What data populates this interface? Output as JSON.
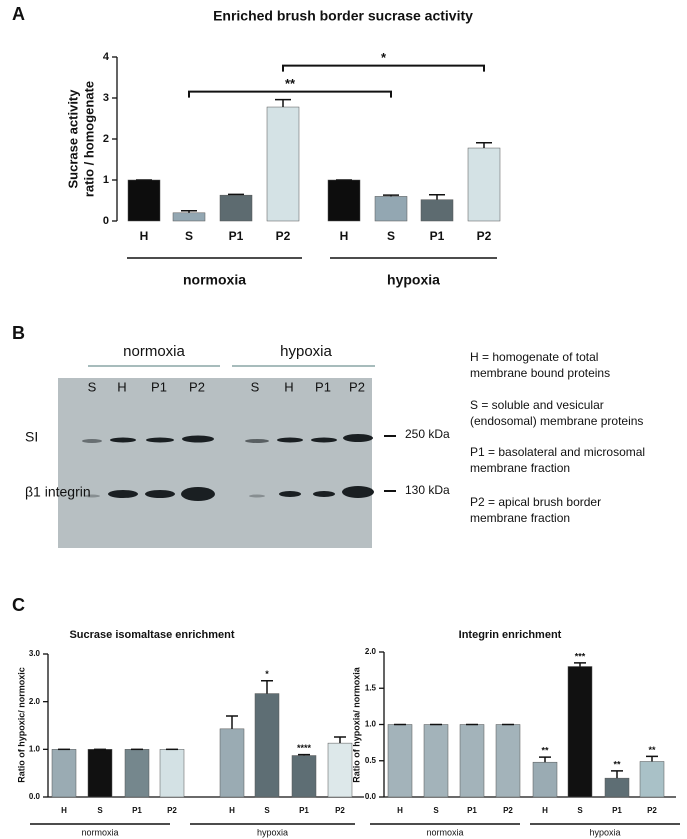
{
  "panel_labels": [
    "A",
    "B",
    "C"
  ],
  "chart_data": [
    {
      "type": "bar",
      "title": "Enriched brush border sucrase activity",
      "ylabel": [
        "Sucrase activity",
        "ratio / homogenate"
      ],
      "categories": [
        "H",
        "S",
        "P1",
        "P2",
        "H",
        "S",
        "P1",
        "P2"
      ],
      "values": [
        1.0,
        0.2,
        0.63,
        2.78,
        1.0,
        0.6,
        0.52,
        1.78
      ],
      "errors": [
        0,
        0.05,
        0.02,
        0.18,
        0,
        0.03,
        0.12,
        0.13
      ],
      "colors": [
        "#0d0d0d",
        "#93a7b2",
        "#5d6b70",
        "#d4e2e5",
        "#0d0d0d",
        "#93a7b2",
        "#5d6b70",
        "#d4e2e5"
      ],
      "groups": [
        "normoxia",
        "hypoxia"
      ],
      "brackets": [
        {
          "from": 1,
          "to": 5,
          "label": "**"
        },
        {
          "from": 3,
          "to": 7,
          "label": "*"
        }
      ],
      "ylim": [
        0,
        4
      ],
      "yticks": [
        0,
        1,
        2,
        3,
        4
      ]
    },
    {
      "type": "bar",
      "title": "Sucrase isomaltase enrichment",
      "ylabel": [
        "Ratio of hypoxic/ normoxic"
      ],
      "categories": [
        "H",
        "S",
        "P1",
        "P2",
        "H",
        "S",
        "P1",
        "P2"
      ],
      "values": [
        1,
        1,
        1,
        1,
        1.43,
        2.17,
        0.87,
        1.13
      ],
      "errors": [
        0,
        0,
        0,
        0,
        0.27,
        0.27,
        0.02,
        0.13
      ],
      "colors": [
        "#9aabb3",
        "#111111",
        "#75878d",
        "#d3e1e4",
        "#9aabb3",
        "#5e6e74",
        "#5e6e74",
        "#dde8ea"
      ],
      "significance": [
        null,
        null,
        null,
        null,
        null,
        "*",
        "****",
        null
      ],
      "groups": [
        "normoxia",
        "hypoxia"
      ],
      "ylim": [
        0,
        3
      ],
      "yticks": [
        {
          "value": 0,
          "label": "0.0"
        },
        {
          "value": 1,
          "label": "1.0"
        },
        {
          "value": 2,
          "label": "2.0"
        },
        {
          "value": 3,
          "label": "3.0"
        }
      ]
    },
    {
      "type": "bar",
      "title": "Integrin enrichment",
      "ylabel": [
        "Ratio of hypoxia/ normoxia"
      ],
      "categories": [
        "H",
        "S",
        "P1",
        "P2",
        "H",
        "S",
        "P1",
        "P2"
      ],
      "values": [
        1,
        1,
        1,
        1,
        0.48,
        1.8,
        0.26,
        0.49
      ],
      "errors": [
        0,
        0,
        0,
        0,
        0.07,
        0.05,
        0.1,
        0.07
      ],
      "colors": [
        "#a3b3ba",
        "#a3b3ba",
        "#a3b3ba",
        "#a3b3ba",
        "#9aabb3",
        "#111111",
        "#5e6e74",
        "#a9c1c7"
      ],
      "significance": [
        null,
        null,
        null,
        null,
        "**",
        "***",
        "**",
        "**"
      ],
      "groups": [
        "normoxia",
        "hypoxia"
      ],
      "ylim": [
        0,
        2
      ],
      "yticks": [
        {
          "value": 0,
          "label": "0.0"
        },
        {
          "value": 0.5,
          "label": "0.5"
        },
        {
          "value": 1,
          "label": "1.0"
        },
        {
          "value": 1.5,
          "label": "1.5"
        },
        {
          "value": 2,
          "label": "2.0"
        }
      ]
    }
  ],
  "blot": {
    "conditions": [
      "normoxia",
      "hypoxia"
    ],
    "lanes": [
      "S",
      "H",
      "P1",
      "P2",
      "S",
      "H",
      "P1",
      "P2"
    ],
    "rows": [
      "SI",
      "β1 integrin"
    ],
    "markers": [
      "250 kDa",
      "130 kDa"
    ],
    "legend": [
      [
        "H = homogenate of total",
        "membrane bound proteins"
      ],
      [
        "S = soluble and vesicular",
        "(endosomal) membrane proteins"
      ],
      [
        "P1 = basolateral and microsomal",
        "membrane fraction"
      ],
      [
        "P2 = apical brush border",
        "membrane fraction"
      ]
    ]
  }
}
